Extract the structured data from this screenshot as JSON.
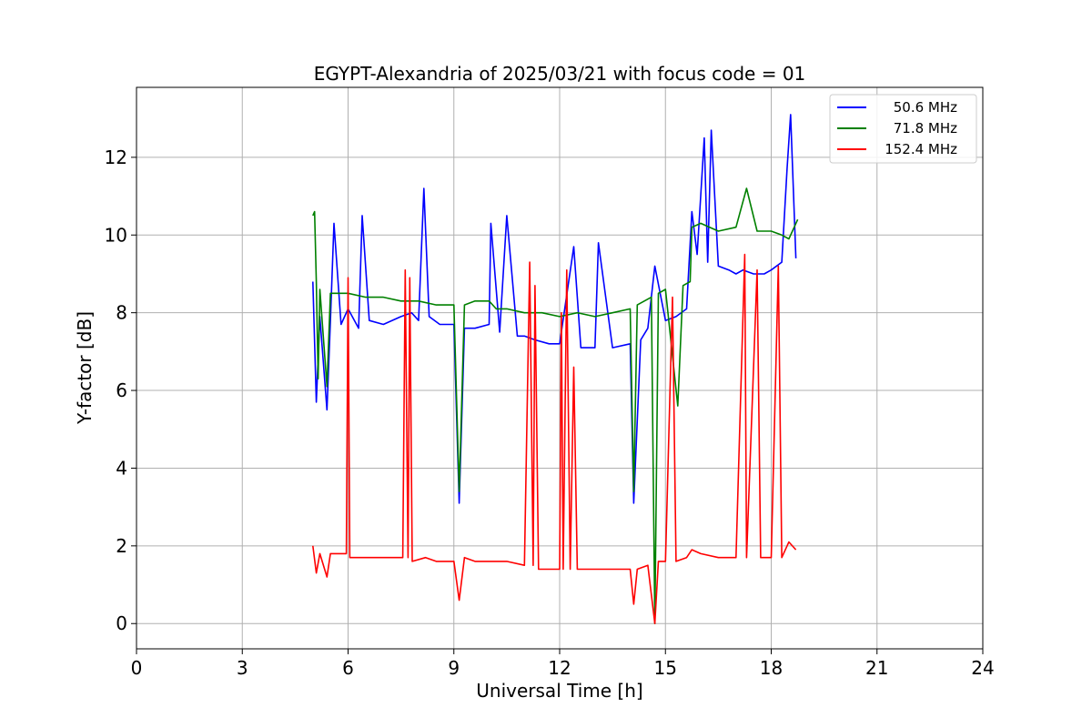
{
  "chart_data": {
    "type": "line",
    "title": "EGYPT-Alexandria of 2025/03/21 with focus code = 01",
    "xlabel": "Universal Time [h]",
    "ylabel": "Y-factor [dB]",
    "xlim": [
      0,
      24
    ],
    "ylim": [
      -0.65,
      13.8
    ],
    "xticks": [
      0,
      3,
      6,
      9,
      12,
      15,
      18,
      21,
      24
    ],
    "xtick_labels": [
      "0",
      "3",
      "6",
      "9",
      "12",
      "15",
      "18",
      "21",
      "24"
    ],
    "yticks": [
      0,
      2,
      4,
      6,
      8,
      10,
      12
    ],
    "ytick_labels": [
      "0",
      "2",
      "4",
      "6",
      "8",
      "10",
      "12"
    ],
    "grid": true,
    "legend_position": "top-right",
    "series": [
      {
        "name": "50.6 MHz",
        "color": "#0000ff",
        "points": [
          [
            5.0,
            8.8
          ],
          [
            5.1,
            5.7
          ],
          [
            5.2,
            7.9
          ],
          [
            5.4,
            5.5
          ],
          [
            5.5,
            7.8
          ],
          [
            5.6,
            10.3
          ],
          [
            5.8,
            7.7
          ],
          [
            6.0,
            8.1
          ],
          [
            6.3,
            7.6
          ],
          [
            6.4,
            10.5
          ],
          [
            6.6,
            7.8
          ],
          [
            7.0,
            7.7
          ],
          [
            7.5,
            7.9
          ],
          [
            7.8,
            8.0
          ],
          [
            8.0,
            7.8
          ],
          [
            8.15,
            11.2
          ],
          [
            8.3,
            7.9
          ],
          [
            8.6,
            7.7
          ],
          [
            9.0,
            7.7
          ],
          [
            9.15,
            3.1
          ],
          [
            9.3,
            7.6
          ],
          [
            9.6,
            7.6
          ],
          [
            10.0,
            7.7
          ],
          [
            10.05,
            10.3
          ],
          [
            10.3,
            7.5
          ],
          [
            10.5,
            10.5
          ],
          [
            10.8,
            7.4
          ],
          [
            11.0,
            7.4
          ],
          [
            11.3,
            7.3
          ],
          [
            11.7,
            7.2
          ],
          [
            12.0,
            7.2
          ],
          [
            12.4,
            9.7
          ],
          [
            12.6,
            7.1
          ],
          [
            13.0,
            7.1
          ],
          [
            13.1,
            9.8
          ],
          [
            13.5,
            7.1
          ],
          [
            14.0,
            7.2
          ],
          [
            14.1,
            3.1
          ],
          [
            14.3,
            7.3
          ],
          [
            14.5,
            7.6
          ],
          [
            14.7,
            9.2
          ],
          [
            15.0,
            7.8
          ],
          [
            15.3,
            7.9
          ],
          [
            15.6,
            8.1
          ],
          [
            15.75,
            10.6
          ],
          [
            15.9,
            9.5
          ],
          [
            16.1,
            12.5
          ],
          [
            16.2,
            9.3
          ],
          [
            16.3,
            12.7
          ],
          [
            16.5,
            9.2
          ],
          [
            16.8,
            9.1
          ],
          [
            17.0,
            9.0
          ],
          [
            17.2,
            9.1
          ],
          [
            17.5,
            9.0
          ],
          [
            17.8,
            9.0
          ],
          [
            18.0,
            9.1
          ],
          [
            18.3,
            9.3
          ],
          [
            18.45,
            11.7
          ],
          [
            18.55,
            13.1
          ],
          [
            18.7,
            9.4
          ]
        ]
      },
      {
        "name": "71.8 MHz",
        "color": "#008000",
        "points": [
          [
            5.0,
            10.5
          ],
          [
            5.05,
            10.6
          ],
          [
            5.1,
            8.8
          ],
          [
            5.15,
            6.3
          ],
          [
            5.2,
            8.6
          ],
          [
            5.4,
            6.1
          ],
          [
            5.5,
            8.5
          ],
          [
            6.0,
            8.5
          ],
          [
            6.5,
            8.4
          ],
          [
            7.0,
            8.4
          ],
          [
            7.5,
            8.3
          ],
          [
            8.0,
            8.3
          ],
          [
            8.5,
            8.2
          ],
          [
            9.0,
            8.2
          ],
          [
            9.15,
            3.4
          ],
          [
            9.3,
            8.2
          ],
          [
            9.6,
            8.3
          ],
          [
            10.0,
            8.3
          ],
          [
            10.2,
            8.1
          ],
          [
            10.5,
            8.1
          ],
          [
            11.0,
            8.0
          ],
          [
            11.5,
            8.0
          ],
          [
            12.0,
            7.9
          ],
          [
            12.5,
            8.0
          ],
          [
            13.0,
            7.9
          ],
          [
            13.5,
            8.0
          ],
          [
            14.0,
            8.1
          ],
          [
            14.1,
            3.4
          ],
          [
            14.2,
            8.2
          ],
          [
            14.6,
            8.4
          ],
          [
            14.7,
            0.0
          ],
          [
            14.8,
            8.5
          ],
          [
            15.0,
            8.6
          ],
          [
            15.35,
            5.6
          ],
          [
            15.5,
            8.7
          ],
          [
            15.7,
            8.8
          ],
          [
            15.75,
            10.2
          ],
          [
            16.0,
            10.3
          ],
          [
            16.5,
            10.1
          ],
          [
            17.0,
            10.2
          ],
          [
            17.3,
            11.2
          ],
          [
            17.6,
            10.1
          ],
          [
            18.0,
            10.1
          ],
          [
            18.3,
            10.0
          ],
          [
            18.5,
            9.9
          ],
          [
            18.75,
            10.4
          ]
        ]
      },
      {
        "name": "152.4 MHz",
        "color": "#ff0000",
        "points": [
          [
            5.0,
            2.0
          ],
          [
            5.1,
            1.3
          ],
          [
            5.2,
            1.8
          ],
          [
            5.4,
            1.2
          ],
          [
            5.5,
            1.8
          ],
          [
            5.95,
            1.8
          ],
          [
            6.0,
            8.9
          ],
          [
            6.05,
            1.7
          ],
          [
            6.5,
            1.7
          ],
          [
            7.0,
            1.7
          ],
          [
            7.55,
            1.7
          ],
          [
            7.62,
            9.1
          ],
          [
            7.7,
            1.7
          ],
          [
            7.75,
            8.9
          ],
          [
            7.82,
            1.6
          ],
          [
            8.2,
            1.7
          ],
          [
            8.5,
            1.6
          ],
          [
            9.0,
            1.6
          ],
          [
            9.15,
            0.6
          ],
          [
            9.3,
            1.7
          ],
          [
            9.6,
            1.6
          ],
          [
            10.0,
            1.6
          ],
          [
            10.5,
            1.6
          ],
          [
            11.0,
            1.5
          ],
          [
            11.15,
            9.3
          ],
          [
            11.25,
            1.5
          ],
          [
            11.3,
            8.7
          ],
          [
            11.4,
            1.4
          ],
          [
            12.0,
            1.4
          ],
          [
            12.05,
            8.0
          ],
          [
            12.1,
            1.4
          ],
          [
            12.2,
            9.1
          ],
          [
            12.3,
            1.4
          ],
          [
            12.4,
            6.6
          ],
          [
            12.5,
            1.4
          ],
          [
            13.0,
            1.4
          ],
          [
            13.5,
            1.4
          ],
          [
            14.0,
            1.4
          ],
          [
            14.1,
            0.5
          ],
          [
            14.2,
            1.4
          ],
          [
            14.5,
            1.5
          ],
          [
            14.7,
            0.0
          ],
          [
            14.8,
            1.6
          ],
          [
            15.0,
            1.6
          ],
          [
            15.2,
            8.4
          ],
          [
            15.3,
            1.6
          ],
          [
            15.6,
            1.7
          ],
          [
            15.75,
            1.9
          ],
          [
            16.0,
            1.8
          ],
          [
            16.5,
            1.7
          ],
          [
            17.0,
            1.7
          ],
          [
            17.25,
            9.5
          ],
          [
            17.3,
            1.7
          ],
          [
            17.6,
            9.1
          ],
          [
            17.7,
            1.7
          ],
          [
            18.0,
            1.7
          ],
          [
            18.2,
            9.2
          ],
          [
            18.3,
            1.7
          ],
          [
            18.5,
            2.1
          ],
          [
            18.7,
            1.9
          ]
        ]
      }
    ]
  }
}
